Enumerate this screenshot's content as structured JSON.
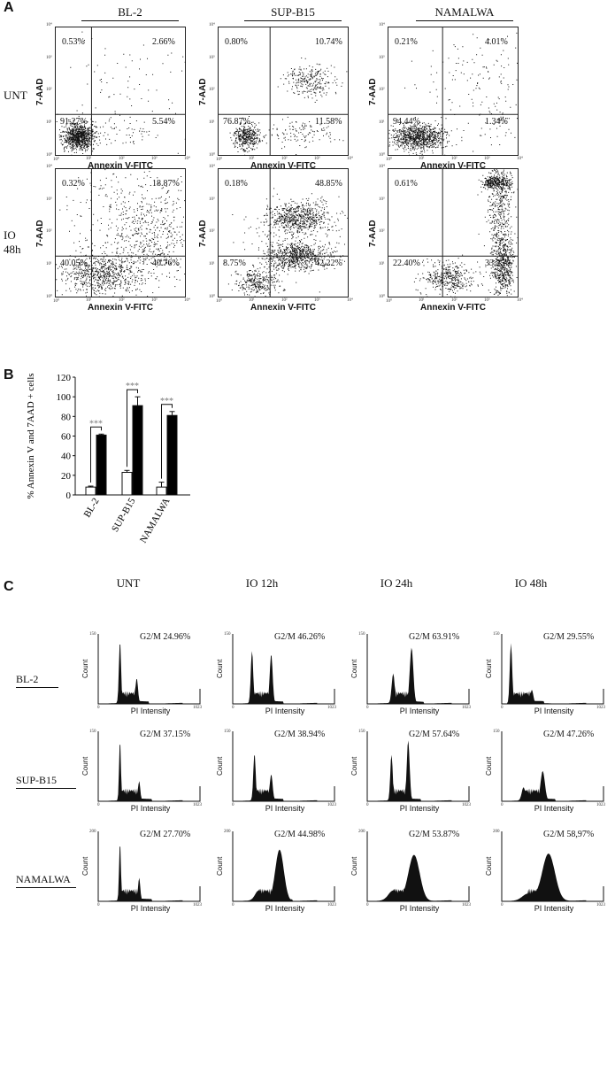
{
  "panel_a": {
    "letter": "A",
    "columns": [
      "BL-2",
      "SUP-B15",
      "NAMALWA"
    ],
    "rows": [
      "UNT",
      "IO\n48h"
    ],
    "row_labels": [
      [
        "UNT"
      ],
      [
        "IO",
        "48h"
      ]
    ],
    "x_axis_label": "Annexin V-FITC",
    "y_axis_label": "7-AAD",
    "tick_labels": [
      "10⁰",
      "10¹",
      "10²",
      "10³",
      "10⁴"
    ],
    "plots": [
      {
        "cell": "BL-2 UNT",
        "q_ul": "0.53%",
        "q_ur": "2.66%",
        "q_ll": "91.27%",
        "q_lr": "5.54%"
      },
      {
        "cell": "SUP-B15 UNT",
        "q_ul": "0.80%",
        "q_ur": "10.74%",
        "q_ll": "76.87%",
        "q_lr": "11.58%"
      },
      {
        "cell": "NAMALWA UNT",
        "q_ul": "0.21%",
        "q_ur": "4.01%",
        "q_ll": "94.44%",
        "q_lr": "1.34%"
      },
      {
        "cell": "BL-2 IO 48h",
        "q_ul": "0.32%",
        "q_ur": "18.87%",
        "q_ll": "40.05%",
        "q_lr": "40.76%"
      },
      {
        "cell": "SUP-B15 IO 48h",
        "q_ul": "0.18%",
        "q_ur": "48.85%",
        "q_ll": "8.75%",
        "q_lr": "42.22%"
      },
      {
        "cell": "NAMALWA IO 48h",
        "q_ul": "0.61%",
        "q_ur": "43.74%",
        "q_ll": "22.40%",
        "q_lr": "33.25%"
      }
    ]
  },
  "panel_b": {
    "letter": "B",
    "significance": "***"
  },
  "chart_data": {
    "type": "bar",
    "categories": [
      "BL-2",
      "SUP-B15",
      "NAMALWA"
    ],
    "series": [
      {
        "values": [
          8,
          23,
          8
        ],
        "errors": [
          1,
          2,
          5
        ],
        "color": "#ffffff"
      },
      {
        "values": [
          61,
          91,
          81
        ],
        "errors": [
          1,
          9,
          4
        ],
        "color": "#000000"
      }
    ],
    "ylabel": "% Annexin V and 7AAD + cells",
    "ylim": [
      0,
      120
    ],
    "yticks": [
      "0",
      "20",
      "40",
      "60",
      "80",
      "100",
      "120"
    ],
    "annotations": [
      "***",
      "***",
      "***"
    ]
  },
  "panel_c": {
    "letter": "C",
    "columns": [
      "UNT",
      "IO 12h",
      "IO 24h",
      "IO 48h"
    ],
    "cell_lines": [
      "BL-2",
      "SUP-B15",
      "NAMALWA"
    ],
    "x_axis_label": "PI Intensity",
    "y_axis_label": "Count",
    "x_ticks": [
      "0",
      "1023"
    ],
    "y_max_ticks": [
      "150",
      "150",
      "200"
    ],
    "g2m": [
      [
        "G2/M 24.96%",
        "G2/M 46.26%",
        "G2/M 63.91%",
        "G2/M 29.55%"
      ],
      [
        "G2/M 37.15%",
        "G2/M 38.94%",
        "G2/M 57.64%",
        "G2/M 47.26%"
      ],
      [
        "G2/M 27.70%",
        "G2/M 44.98%",
        "G2/M 53.87%",
        "G2/M 58,97%"
      ]
    ],
    "g2m_fraction": [
      [
        0.2496,
        0.4626,
        0.6391,
        0.2955
      ],
      [
        0.3715,
        0.3894,
        0.5764,
        0.4726
      ],
      [
        0.277,
        0.4498,
        0.5387,
        0.5897
      ]
    ]
  }
}
